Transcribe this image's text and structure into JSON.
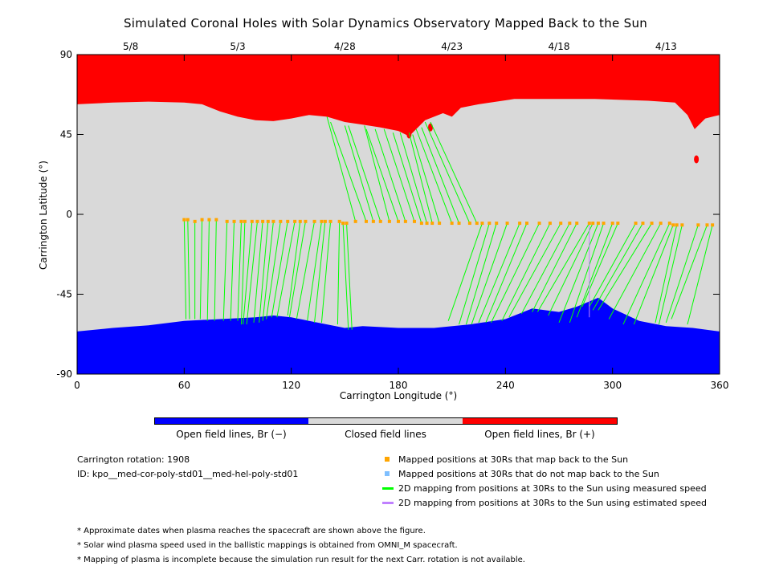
{
  "title": "Simulated Coronal Holes with Solar Dynamics Observatory Mapped Back to the Sun",
  "chart_data": {
    "type": "scatter",
    "xlabel": "Carrington Longitude (°)",
    "ylabel": "Carrington Latitude (°)",
    "xlim": [
      0,
      360
    ],
    "ylim": [
      -90,
      90
    ],
    "x_ticks": [
      "0",
      "60",
      "120",
      "180",
      "240",
      "300",
      "360"
    ],
    "y_ticks": [
      "90",
      "45",
      "0",
      "-45",
      "-90"
    ],
    "top_date_ticks": [
      {
        "lon": 30,
        "label": "5/8"
      },
      {
        "lon": 90,
        "label": "5/3"
      },
      {
        "lon": 150,
        "label": "4/28"
      },
      {
        "lon": 210,
        "label": "4/23"
      },
      {
        "lon": 270,
        "label": "4/18"
      },
      {
        "lon": 330,
        "label": "4/13"
      }
    ],
    "north_boundary": [
      [
        0,
        62
      ],
      [
        20,
        63
      ],
      [
        40,
        63.5
      ],
      [
        60,
        63
      ],
      [
        70,
        62
      ],
      [
        80,
        58
      ],
      [
        90,
        55
      ],
      [
        100,
        53
      ],
      [
        110,
        52.5
      ],
      [
        120,
        54
      ],
      [
        130,
        56
      ],
      [
        140,
        55
      ],
      [
        150,
        52
      ],
      [
        160,
        50.5
      ],
      [
        170,
        49
      ],
      [
        180,
        47
      ],
      [
        186,
        44
      ],
      [
        190,
        48
      ],
      [
        195,
        53
      ],
      [
        205,
        57
      ],
      [
        210,
        55
      ],
      [
        215,
        60
      ],
      [
        225,
        62
      ],
      [
        245,
        65
      ],
      [
        265,
        65
      ],
      [
        290,
        65
      ],
      [
        320,
        64
      ],
      [
        335,
        63
      ],
      [
        342,
        56
      ],
      [
        346,
        48
      ],
      [
        352,
        54
      ],
      [
        360,
        56
      ]
    ],
    "south_boundary": [
      [
        0,
        -66
      ],
      [
        20,
        -64
      ],
      [
        40,
        -62.5
      ],
      [
        60,
        -60
      ],
      [
        80,
        -59
      ],
      [
        100,
        -58
      ],
      [
        110,
        -57
      ],
      [
        120,
        -58
      ],
      [
        130,
        -60
      ],
      [
        140,
        -62
      ],
      [
        150,
        -64
      ],
      [
        160,
        -63
      ],
      [
        180,
        -64
      ],
      [
        200,
        -64
      ],
      [
        220,
        -62
      ],
      [
        240,
        -59
      ],
      [
        255,
        -53
      ],
      [
        270,
        -55
      ],
      [
        280,
        -52
      ],
      [
        292,
        -47
      ],
      [
        300,
        -53
      ],
      [
        315,
        -60
      ],
      [
        330,
        -63
      ],
      [
        345,
        -64
      ],
      [
        360,
        -66
      ]
    ],
    "red_blobs": [
      [
        186,
        45
      ],
      [
        198,
        49
      ],
      [
        347,
        31
      ]
    ],
    "footpoints_30Rs": [
      [
        60,
        -3
      ],
      [
        62,
        -3
      ],
      [
        66,
        -4
      ],
      [
        70,
        -3
      ],
      [
        74,
        -3
      ],
      [
        78,
        -3
      ],
      [
        84,
        -4
      ],
      [
        88,
        -4
      ],
      [
        92,
        -4
      ],
      [
        94,
        -4
      ],
      [
        98,
        -4
      ],
      [
        101,
        -4
      ],
      [
        104,
        -4
      ],
      [
        107,
        -4
      ],
      [
        110,
        -4
      ],
      [
        114,
        -4
      ],
      [
        118,
        -4
      ],
      [
        122,
        -4
      ],
      [
        125,
        -4
      ],
      [
        128,
        -4
      ],
      [
        133,
        -4
      ],
      [
        137,
        -4
      ],
      [
        139,
        -4
      ],
      [
        142,
        -4
      ],
      [
        147,
        -4
      ],
      [
        149,
        -5
      ],
      [
        151,
        -5
      ],
      [
        156,
        -4
      ],
      [
        162,
        -4
      ],
      [
        166,
        -4
      ],
      [
        170,
        -4
      ],
      [
        175,
        -4
      ],
      [
        180,
        -4
      ],
      [
        184,
        -4
      ],
      [
        189,
        -4
      ],
      [
        193,
        -5
      ],
      [
        196,
        -5
      ],
      [
        199,
        -5
      ],
      [
        203,
        -5
      ],
      [
        210,
        -5
      ],
      [
        214,
        -5
      ],
      [
        220,
        -5
      ],
      [
        224,
        -5
      ],
      [
        227,
        -5
      ],
      [
        231,
        -5
      ],
      [
        235,
        -5
      ],
      [
        241,
        -5
      ],
      [
        248,
        -5
      ],
      [
        252,
        -5
      ],
      [
        259,
        -5
      ],
      [
        265,
        -5
      ],
      [
        271,
        -5
      ],
      [
        276,
        -5
      ],
      [
        280,
        -5
      ],
      [
        287,
        -5
      ],
      [
        289,
        -5
      ],
      [
        292,
        -5
      ],
      [
        295,
        -5
      ],
      [
        300,
        -5
      ],
      [
        303,
        -5
      ],
      [
        313,
        -5
      ],
      [
        317,
        -5
      ],
      [
        322,
        -5
      ],
      [
        327,
        -5
      ],
      [
        332,
        -5
      ],
      [
        334,
        -6
      ],
      [
        336,
        -6
      ],
      [
        339,
        -6
      ],
      [
        348,
        -6
      ],
      [
        353,
        -6
      ],
      [
        356,
        -6
      ]
    ],
    "sun_footpoints": [
      [
        61,
        -59
      ],
      [
        63,
        -59
      ],
      [
        66,
        -59
      ],
      [
        69,
        -59
      ],
      [
        73,
        -60
      ],
      [
        77,
        -60
      ],
      [
        82,
        -60
      ],
      [
        86,
        -60
      ],
      [
        90,
        -60
      ],
      [
        92,
        -62
      ],
      [
        93,
        -62
      ],
      [
        95,
        -62
      ],
      [
        99,
        -61
      ],
      [
        102,
        -61
      ],
      [
        104,
        -60
      ],
      [
        106,
        -59
      ],
      [
        109,
        -58
      ],
      [
        112,
        -58
      ],
      [
        118,
        -57
      ],
      [
        119,
        -58
      ],
      [
        123,
        -59
      ],
      [
        129,
        -60
      ],
      [
        133,
        -61
      ],
      [
        137,
        -61
      ],
      [
        146,
        -62
      ],
      [
        152,
        -65
      ],
      [
        154,
        -65
      ],
      [
        140,
        55
      ],
      [
        142,
        52
      ],
      [
        150,
        50
      ],
      [
        152,
        50
      ],
      [
        161,
        50
      ],
      [
        162,
        48
      ],
      [
        167,
        48
      ],
      [
        172,
        48
      ],
      [
        177,
        46
      ],
      [
        181,
        46
      ],
      [
        186,
        46
      ],
      [
        188,
        45
      ],
      [
        190,
        48
      ],
      [
        193,
        49
      ],
      [
        195,
        52
      ],
      [
        198,
        52
      ],
      [
        208,
        -60
      ],
      [
        214,
        -62
      ],
      [
        218,
        -62
      ],
      [
        221,
        -62
      ],
      [
        225,
        -61
      ],
      [
        229,
        -61
      ],
      [
        232,
        -61
      ],
      [
        238,
        -60
      ],
      [
        242,
        -58
      ],
      [
        249,
        -56
      ],
      [
        255,
        -55
      ],
      [
        258,
        -55
      ],
      [
        264,
        -57
      ],
      [
        270,
        -61
      ],
      [
        276,
        -61
      ],
      [
        280,
        -58
      ],
      [
        283,
        -52
      ],
      [
        287,
        -52
      ],
      [
        289,
        -54
      ],
      [
        292,
        -54
      ],
      [
        298,
        -59
      ],
      [
        306,
        -62
      ],
      [
        312,
        -62
      ],
      [
        324,
        -61
      ],
      [
        326,
        -62
      ],
      [
        330,
        -61
      ],
      [
        333,
        -59
      ],
      [
        342,
        -62
      ],
      [
        359,
        55
      ]
    ],
    "colorbar": {
      "segments": [
        {
          "label": "Open field lines, Br (−)",
          "color": "#0000ff"
        },
        {
          "label": "Closed field lines",
          "color": "#d9d9d9"
        },
        {
          "label": "Open field lines, Br (+)",
          "color": "#ff0000"
        }
      ]
    },
    "colors": {
      "positive_open": "#ff0000",
      "negative_open": "#0000ff",
      "closed": "#d9d9d9",
      "measured_line": "#00ff00",
      "estimated_line": "#c080ff",
      "mapped_point": "#ffa500",
      "unmapped_point": "#7fbfff"
    }
  },
  "info": {
    "rotation": "Carrington rotation: 1908",
    "id": "ID: kpo__med-cor-poly-std01__med-hel-poly-std01"
  },
  "legend": [
    {
      "label": "Mapped positions at 30Rs that map back to the Sun",
      "icon": "orange-square"
    },
    {
      "label": "Mapped positions at 30Rs that do not map back to the Sun",
      "icon": "lightblue-square"
    },
    {
      "label": "2D mapping from positions at 30Rs to the Sun using measured speed",
      "icon": "green-line"
    },
    {
      "label": "2D mapping from positions at 30Rs to the Sun using estimated speed",
      "icon": "purple-line"
    }
  ],
  "notes": [
    "* Approximate dates when plasma reaches the spacecraft are shown above the figure.",
    "* Solar wind plasma speed used in the ballistic mappings is obtained from OMNI_M spacecraft.",
    "* Mapping of plasma is incomplete because the simulation run result for the next Carr. rotation is not available."
  ]
}
